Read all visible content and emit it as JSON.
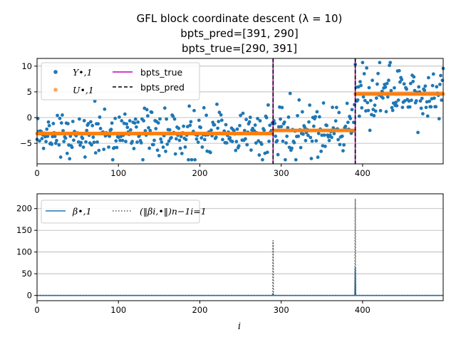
{
  "figure": {
    "title_lines": [
      "GFL block coordinate descent (λ = 10)",
      "bpts_pred=[391, 290]",
      "bpts_true=[290, 391]"
    ]
  },
  "chart_data": [
    {
      "type": "scatter",
      "n": 500,
      "xlim": [
        0,
        499
      ],
      "ylim": [
        -9,
        11.5
      ],
      "grid": "y",
      "xticks": [
        0,
        100,
        200,
        300,
        400
      ],
      "yticks": [
        -5,
        0,
        5,
        10
      ],
      "xtick_labels": [
        "0",
        "100",
        "200",
        "300",
        "400"
      ],
      "ytick_labels": [
        "−5",
        "0",
        "5",
        "10"
      ],
      "legend_placement": "top-left",
      "legend": [
        {
          "label": "Y•,1",
          "kind": "marker",
          "color": "#1f77b4"
        },
        {
          "label": "U•,1",
          "kind": "marker",
          "color": "#ff7f0e"
        },
        {
          "label": "bpts_true",
          "kind": "line",
          "color": "#bf00bf"
        },
        {
          "label": "bpts_pred",
          "kind": "dashed",
          "color": "#000000"
        }
      ],
      "segments": [
        {
          "x_start": 0,
          "x_end": 290,
          "mean": -3.1,
          "spread": 2.3
        },
        {
          "x_start": 290,
          "x_end": 391,
          "mean": -2.5,
          "spread": 2.6
        },
        {
          "x_start": 391,
          "x_end": 499,
          "mean": 4.6,
          "spread": 3.0
        }
      ],
      "series": [
        {
          "name": "Y•,1",
          "kind": "points",
          "color": "#1f77b4"
        },
        {
          "name": "U•,1",
          "kind": "piecewise-constant",
          "color": "#ff7f0e",
          "levels": [
            {
              "x": [
                0,
                290
              ],
              "y": -3.1
            },
            {
              "x": [
                290,
                391
              ],
              "y": -2.5
            },
            {
              "x": [
                391,
                499
              ],
              "y": 4.6
            }
          ]
        }
      ],
      "bpts_true": [
        290,
        391
      ],
      "bpts_pred": [
        391,
        290
      ]
    },
    {
      "type": "line",
      "xlim": [
        0,
        499
      ],
      "ylim": [
        -12,
        234
      ],
      "grid": "y",
      "xticks": [
        0,
        100,
        200,
        300,
        400
      ],
      "yticks": [
        0,
        50,
        100,
        150,
        200
      ],
      "xtick_labels": [
        "0",
        "100",
        "200",
        "300",
        "400"
      ],
      "ytick_labels": [
        "0",
        "50",
        "100",
        "150",
        "200"
      ],
      "xlabel": "i",
      "legend_placement": "top-left",
      "legend": [
        {
          "label": "β•,1",
          "kind": "line",
          "color": "#1f77b4"
        },
        {
          "label": "(‖βi,•‖)n−1i=1",
          "kind": "dotted",
          "color": "#555555"
        }
      ],
      "series": [
        {
          "name": "β•,1",
          "color": "#1f77b4",
          "baseline": 0,
          "spikes": [
            {
              "x": 290,
              "y": 5
            },
            {
              "x": 391,
              "y": 65
            }
          ]
        },
        {
          "name": "(‖βi,•‖)n−1i=1",
          "color": "#555555",
          "baseline": 0,
          "spikes": [
            {
              "x": 290,
              "y": 127
            },
            {
              "x": 391,
              "y": 223
            }
          ]
        }
      ]
    }
  ]
}
